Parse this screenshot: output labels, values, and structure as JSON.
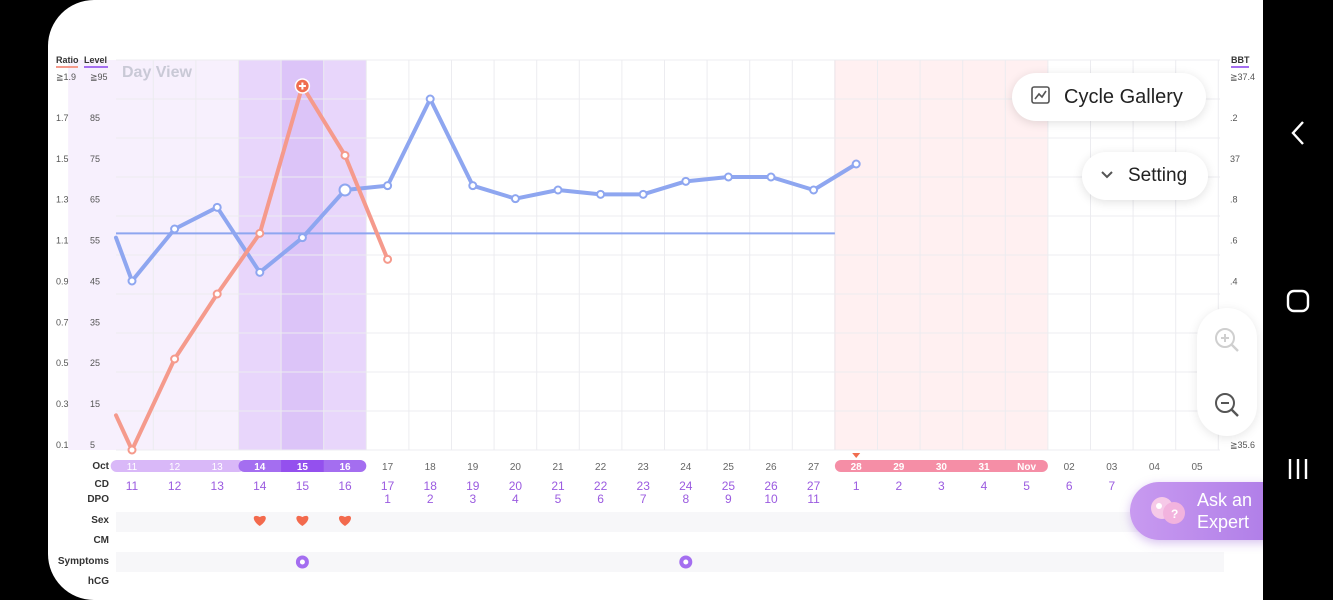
{
  "legend": {
    "ratio": "Ratio",
    "level": "Level",
    "bbt": "BBT"
  },
  "view_label": "Day View",
  "buttons": {
    "cycle_gallery": "Cycle Gallery",
    "setting": "Setting",
    "ask_line1": "Ask an",
    "ask_line2": "Expert"
  },
  "axis": {
    "ratio_ticks": [
      "≧1.9",
      "1.7",
      "1.5",
      "1.3",
      "1.1",
      "0.9",
      "0.7",
      "0.5",
      "0.3",
      "0.1"
    ],
    "level_ticks": [
      "≧95",
      "85",
      "75",
      "65",
      "55",
      "45",
      "35",
      "25",
      "15",
      "5"
    ],
    "bbt_ticks": [
      "≧37.4",
      ".2",
      "37",
      ".8",
      ".6",
      ".4",
      ".2",
      "36",
      ".8",
      "≧35.6"
    ]
  },
  "row_labels": {
    "month": "Oct",
    "cd": "CD",
    "dpo": "DPO",
    "sex": "Sex",
    "cm": "CM",
    "symptoms": "Symptoms",
    "hcg": "hCG"
  },
  "chart_data": {
    "type": "line",
    "dates": [
      "11",
      "12",
      "13",
      "14",
      "15",
      "16",
      "17",
      "18",
      "19",
      "20",
      "21",
      "22",
      "23",
      "24",
      "25",
      "26",
      "27",
      "28",
      "29",
      "30",
      "31",
      "Nov",
      "02",
      "03",
      "04",
      "05"
    ],
    "cd": [
      "11",
      "12",
      "13",
      "14",
      "15",
      "16",
      "17",
      "18",
      "19",
      "20",
      "21",
      "22",
      "23",
      "24",
      "25",
      "26",
      "27",
      "1",
      "2",
      "3",
      "4",
      "5",
      "6",
      "7",
      "",
      ""
    ],
    "dpo": [
      "",
      "",
      "",
      "",
      "",
      "",
      "1",
      "2",
      "3",
      "4",
      "5",
      "6",
      "7",
      "8",
      "9",
      "10",
      "11",
      "",
      "",
      "",
      "",
      "",
      "",
      "",
      "",
      ""
    ],
    "bbt": {
      "name": "BBT",
      "color": "#8ea6f0",
      "values": [
        36.38,
        36.62,
        36.72,
        36.42,
        36.58,
        36.8,
        36.82,
        37.22,
        36.82,
        36.76,
        36.8,
        36.78,
        36.78,
        36.84,
        36.86,
        36.86,
        36.8,
        36.92
      ]
    },
    "bbt_coverline": 36.6,
    "level": {
      "name": "Level",
      "color": "#f59a8c",
      "values": [
        5,
        26,
        41,
        55,
        89,
        73,
        49
      ]
    },
    "level_peak_index": 4,
    "bbt_range": [
      35.6,
      37.4
    ],
    "level_range": [
      5,
      95
    ],
    "fertile_window": [
      0,
      5
    ],
    "peak_days": [
      3,
      5
    ],
    "period_predicted": [
      17,
      21
    ],
    "sex_days": [
      3,
      4,
      5
    ],
    "symptom_days": [
      4,
      13
    ]
  },
  "colors": {
    "fertile_light": "#f7f0fd",
    "fertile_mid": "#e8d6fb",
    "peak": "#dcc4f8",
    "period": "#fff0f1",
    "period_line": "#f6b8c2",
    "pill_purple": "#a46ef0",
    "pill_pink": "#f58ea6",
    "text_purple": "#9b5be0",
    "heart": "#f36a4d"
  }
}
